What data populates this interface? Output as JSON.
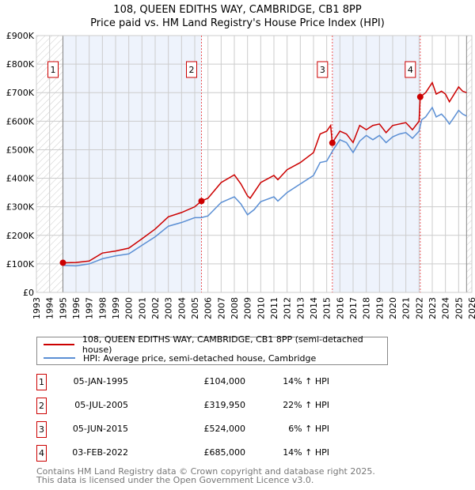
{
  "chart_data": {
    "type": "line",
    "title": "108, QUEEN EDITHS WAY, CAMBRIDGE, CB1 8PP",
    "subtitle": "Price paid vs. HM Land Registry's House Price Index (HPI)",
    "xlim": [
      1993,
      2026
    ],
    "ylim": [
      0,
      900000
    ],
    "y_ticks": [
      {
        "v": 0,
        "label": "£0"
      },
      {
        "v": 100000,
        "label": "£100K"
      },
      {
        "v": 200000,
        "label": "£200K"
      },
      {
        "v": 300000,
        "label": "£300K"
      },
      {
        "v": 400000,
        "label": "£400K"
      },
      {
        "v": 500000,
        "label": "£500K"
      },
      {
        "v": 600000,
        "label": "£600K"
      },
      {
        "v": 700000,
        "label": "£700K"
      },
      {
        "v": 800000,
        "label": "£800K"
      },
      {
        "v": 900000,
        "label": "£900K"
      }
    ],
    "x_ticks": [
      "1993",
      "1994",
      "1995",
      "1996",
      "1997",
      "1998",
      "1999",
      "2000",
      "2001",
      "2002",
      "2003",
      "2004",
      "2005",
      "2006",
      "2007",
      "2008",
      "2009",
      "2010",
      "2011",
      "2012",
      "2013",
      "2014",
      "2015",
      "2016",
      "2017",
      "2018",
      "2019",
      "2020",
      "2021",
      "2022",
      "2023",
      "2024",
      "2025",
      "2026"
    ],
    "series": [
      {
        "name": "108, QUEEN EDITHS WAY, CAMBRIDGE, CB1 8PP (semi-detached house)",
        "color": "#cc0000",
        "x": [
          1995,
          1996,
          1997,
          1998,
          1999,
          2000,
          2001,
          2002,
          2003,
          2004,
          2005,
          2005.5,
          2006,
          2007,
          2008,
          2008.5,
          2009,
          2009.2,
          2010,
          2011,
          2011.3,
          2012,
          2013,
          2014,
          2014.5,
          2015,
          2015.3,
          2015.42,
          2016,
          2016.5,
          2017,
          2017.5,
          2018,
          2018.5,
          2019,
          2019.5,
          2020,
          2020.5,
          2021,
          2021.5,
          2022,
          2022.09,
          2022.5,
          2023,
          2023.3,
          2023.7,
          2024,
          2024.3,
          2024.6,
          2025,
          2025.3,
          2025.6
        ],
        "y": [
          104000,
          105000,
          110000,
          138000,
          145000,
          155000,
          188000,
          222000,
          265000,
          280000,
          300000,
          320000,
          330000,
          385000,
          412000,
          380000,
          338000,
          330000,
          385000,
          410000,
          395000,
          430000,
          455000,
          490000,
          555000,
          565000,
          585000,
          524000,
          565000,
          555000,
          525000,
          585000,
          570000,
          585000,
          590000,
          560000,
          585000,
          590000,
          595000,
          570000,
          600000,
          685000,
          700000,
          735000,
          695000,
          705000,
          695000,
          668000,
          690000,
          720000,
          705000,
          700000
        ]
      },
      {
        "name": "HPI: Average price, semi-detached house, Cambridge",
        "color": "#5b8fd4",
        "x": [
          1995,
          1996,
          1997,
          1998,
          1999,
          2000,
          2001,
          2002,
          2003,
          2004,
          2005,
          2005.5,
          2006,
          2007,
          2008,
          2008.5,
          2009,
          2009.5,
          2010,
          2011,
          2011.3,
          2012,
          2013,
          2014,
          2014.5,
          2015,
          2015.5,
          2016,
          2016.5,
          2017,
          2017.5,
          2018,
          2018.5,
          2019,
          2019.5,
          2020,
          2020.5,
          2021,
          2021.5,
          2022,
          2022.2,
          2022.5,
          2023,
          2023.3,
          2023.7,
          2024,
          2024.3,
          2024.6,
          2025,
          2025.3,
          2025.6
        ],
        "y": [
          95000,
          93000,
          100000,
          118000,
          128000,
          135000,
          165000,
          195000,
          232000,
          245000,
          262000,
          262000,
          268000,
          315000,
          335000,
          310000,
          272000,
          290000,
          318000,
          335000,
          320000,
          350000,
          380000,
          410000,
          455000,
          460000,
          500000,
          535000,
          525000,
          490000,
          530000,
          550000,
          535000,
          550000,
          525000,
          545000,
          555000,
          560000,
          540000,
          565000,
          605000,
          615000,
          648000,
          615000,
          625000,
          610000,
          590000,
          610000,
          638000,
          625000,
          618000
        ]
      }
    ],
    "sales": [
      {
        "id": "1",
        "x": 1995.01,
        "date": "05-JAN-1995",
        "price": "£104,000",
        "value": 104000,
        "hpi": "14% ↑ HPI"
      },
      {
        "id": "2",
        "x": 2005.51,
        "date": "05-JUL-2005",
        "price": "£319,950",
        "value": 319950,
        "hpi": "22% ↑ HPI"
      },
      {
        "id": "3",
        "x": 2015.43,
        "date": "05-JUN-2015",
        "price": "£524,000",
        "value": 524000,
        "hpi": "6% ↑ HPI"
      },
      {
        "id": "4",
        "x": 2022.09,
        "date": "03-FEB-2022",
        "price": "£685,000",
        "value": 685000,
        "hpi": "14% ↑ HPI"
      }
    ],
    "data_end": 2025.6,
    "grid": true,
    "legend": "bottom"
  },
  "footer": [
    "Contains HM Land Registry data © Crown copyright and database right 2025.",
    "This data is licensed under the Open Government Licence v3.0."
  ]
}
